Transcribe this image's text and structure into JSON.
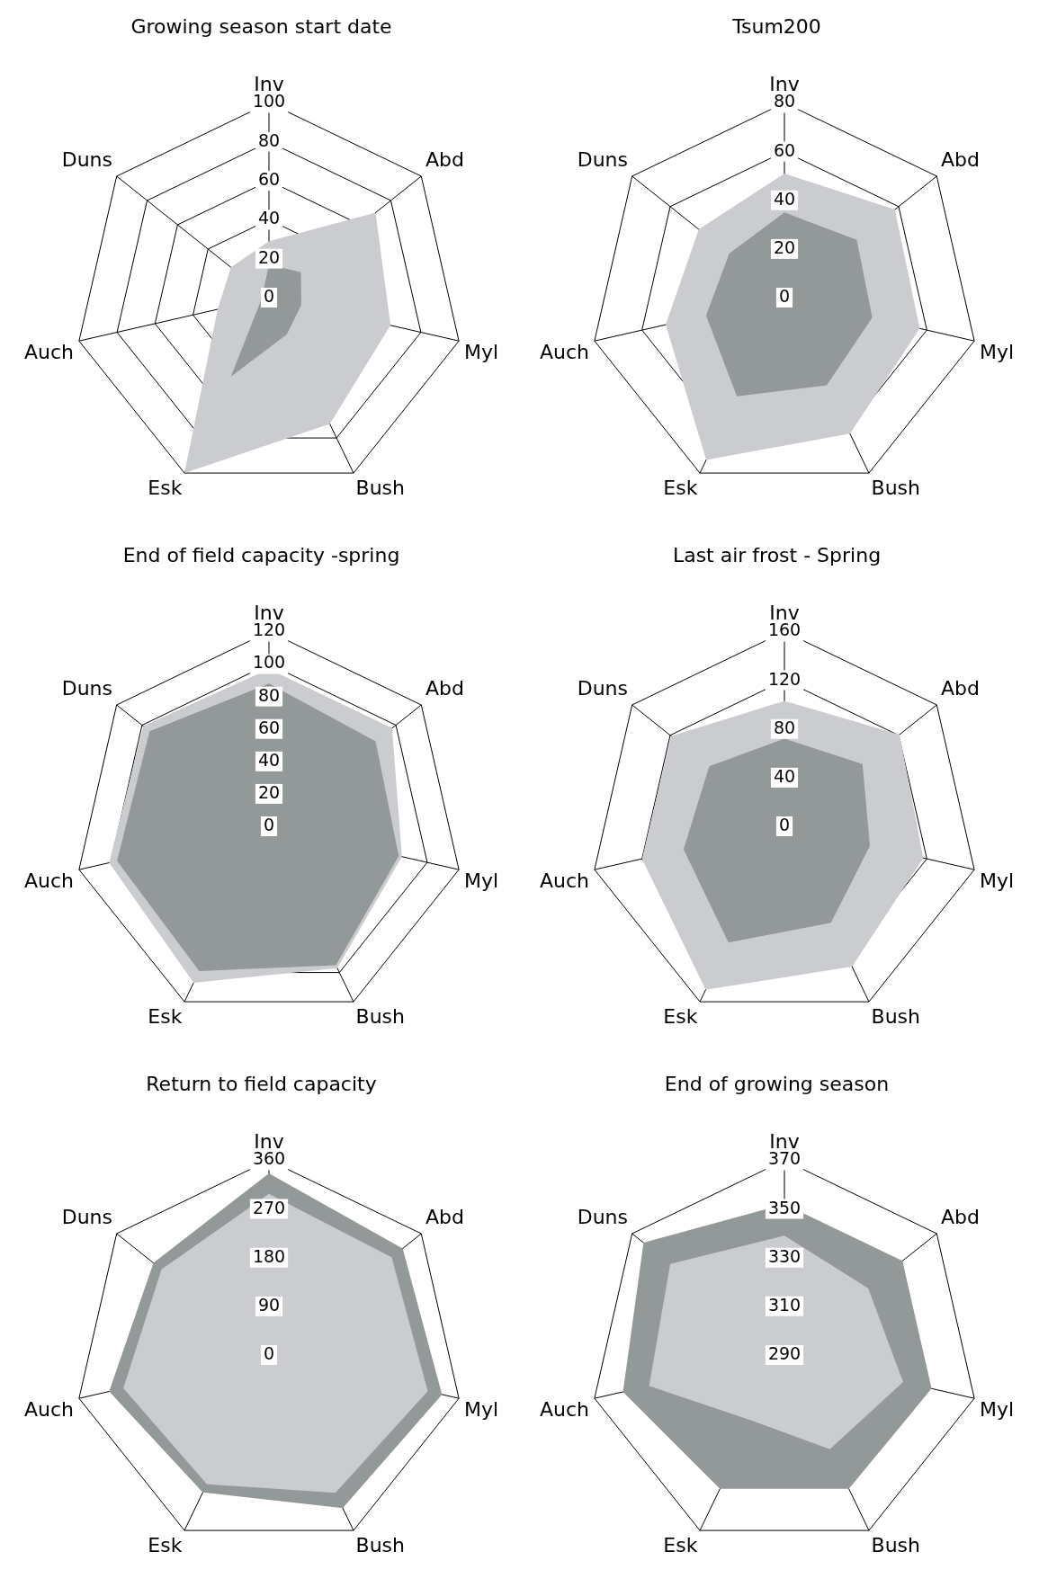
{
  "chart_data": [
    {
      "type": "radar",
      "title": "Growing season start date",
      "categories": [
        "Inv",
        "Abd",
        "Myl",
        "Bush",
        "Esk",
        "Auch",
        "Duns"
      ],
      "ylim": [
        0,
        100
      ],
      "yticks": [
        0,
        20,
        40,
        60,
        80,
        100
      ],
      "grid": true,
      "series": [
        {
          "color": "#cbccd0",
          "values": [
            29,
            70,
            64,
            72,
            100,
            27,
            25
          ]
        },
        {
          "color": "#939899",
          "values": [
            17,
            21,
            17,
            21,
            45,
            4,
            4
          ]
        }
      ]
    },
    {
      "type": "radar",
      "title": "Tsum200",
      "categories": [
        "Inv",
        "Abd",
        "Myl",
        "Bush",
        "Esk",
        "Auch",
        "Duns"
      ],
      "ylim": [
        0,
        80
      ],
      "yticks": [
        0,
        20,
        40,
        60,
        80
      ],
      "grid": true,
      "series": [
        {
          "color": "#cbccd0",
          "values": [
            51,
            58,
            57,
            62,
            74,
            50,
            45
          ]
        },
        {
          "color": "#939899",
          "values": [
            35,
            38,
            37,
            40,
            45,
            33,
            29
          ]
        }
      ]
    },
    {
      "type": "radar",
      "title": "End of field capacity -spring",
      "categories": [
        "Inv",
        "Abd",
        "Myl",
        "Bush",
        "Esk",
        "Auch",
        "Duns"
      ],
      "ylim": [
        0,
        120
      ],
      "yticks": [
        0,
        20,
        40,
        60,
        80,
        100,
        120
      ],
      "grid": true,
      "series": [
        {
          "color": "#cbccd0",
          "values": [
            97,
            97,
            84,
            97,
            107,
            101,
            99
          ]
        },
        {
          "color": "#939899",
          "values": [
            88,
            84,
            82,
            95,
            99,
            96,
            94
          ]
        }
      ]
    },
    {
      "type": "radar",
      "title": "Last air frost - Spring",
      "categories": [
        "Inv",
        "Abd",
        "Myl",
        "Bush",
        "Esk",
        "Auch",
        "Duns"
      ],
      "ylim": [
        0,
        160
      ],
      "yticks": [
        0,
        40,
        80,
        120,
        160
      ],
      "grid": true,
      "series": [
        {
          "color": "#cbccd0",
          "values": [
            103,
            121,
            117,
            128,
            149,
            120,
            119
          ]
        },
        {
          "color": "#939899",
          "values": [
            72,
            82,
            72,
            88,
            106,
            85,
            79
          ]
        }
      ]
    },
    {
      "type": "radar",
      "title": "Return to field capacity",
      "categories": [
        "Inv",
        "Abd",
        "Myl",
        "Bush",
        "Esk",
        "Auch",
        "Duns"
      ],
      "ylim": [
        0,
        360
      ],
      "yticks": [
        0,
        90,
        180,
        270,
        360
      ],
      "grid": true,
      "series": [
        {
          "color": "#939899",
          "values": [
            336,
            316,
            328,
            314,
            282,
            303,
            273
          ]
        },
        {
          "color": "#cbccd0",
          "values": [
            298,
            290,
            301,
            283,
            265,
            276,
            254
          ]
        }
      ]
    },
    {
      "type": "radar",
      "title": "End of growing season",
      "categories": [
        "Inv",
        "Abd",
        "Myl",
        "Bush",
        "Esk",
        "Auch",
        "Duns"
      ],
      "ylim": [
        290,
        370
      ],
      "yticks": [
        290,
        310,
        330,
        350,
        370
      ],
      "grid": true,
      "series": [
        {
          "color": "#939899",
          "values": [
            352,
            352,
            352,
            351,
            351,
            358,
            364
          ]
        },
        {
          "color": "#cbccd0",
          "values": [
            339,
            334,
            340,
            333,
            320,
            347,
            350
          ]
        }
      ]
    }
  ]
}
